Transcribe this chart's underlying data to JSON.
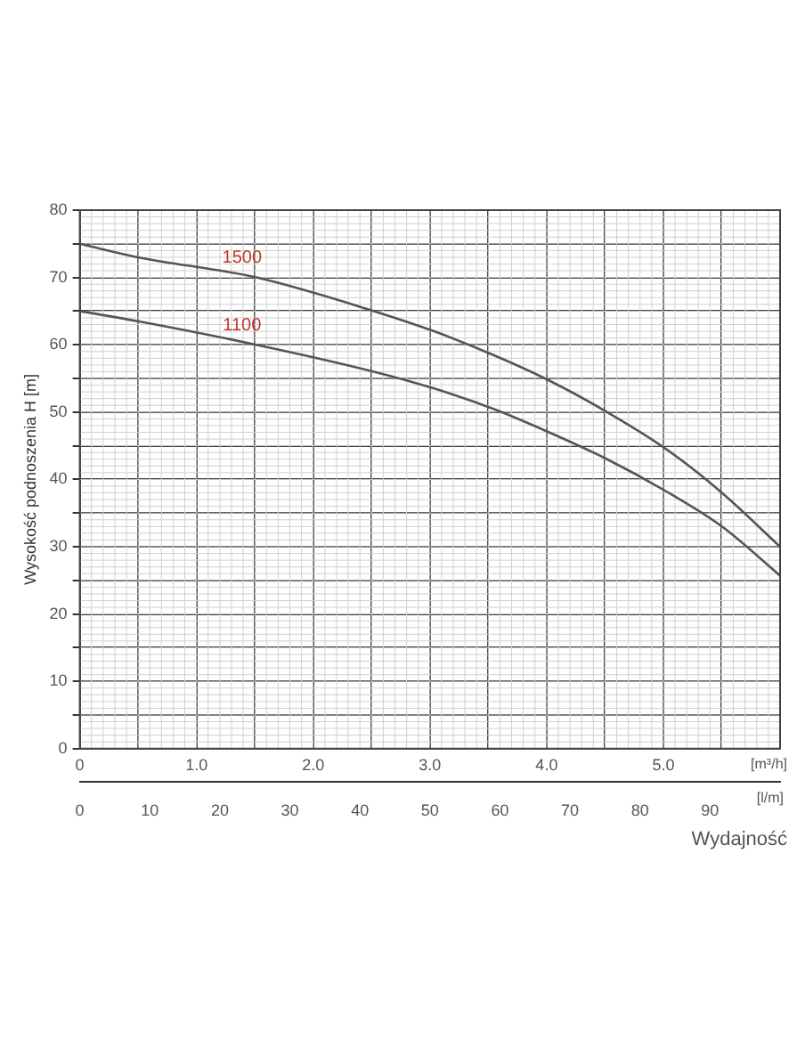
{
  "chart_data": {
    "type": "line",
    "ylabel": "Wysokość podnoszenia H [m]",
    "xlabel": "[l/m]",
    "x2label": "[m³/h]",
    "annotations": [
      "Wydajność"
    ],
    "x": [
      0,
      8.3,
      25.2,
      42,
      50.6,
      59,
      67,
      75.3,
      83.6,
      91.7,
      100
    ],
    "series": [
      {
        "name": "1500",
        "color": "#555555",
        "values": [
          75,
          73,
          70,
          65,
          62,
          58.5,
          54.7,
          50,
          44.6,
          38,
          30
        ]
      },
      {
        "name": "1100",
        "color": "#555555",
        "values": [
          65,
          63.5,
          60,
          56,
          53.5,
          50.5,
          47,
          43,
          38.3,
          33,
          25.7
        ]
      }
    ],
    "xlim": [
      0,
      100
    ],
    "xticks": [
      0,
      10,
      20,
      30,
      40,
      50,
      60,
      70,
      80,
      90
    ],
    "x2lim": [
      0,
      6
    ],
    "x2ticks": [
      0,
      {
        "value": 0.5,
        "label": null
      },
      {
        "value": 1,
        "label": "1.0"
      },
      {
        "value": 1.5,
        "label": null
      },
      {
        "value": 2,
        "label": "2.0"
      },
      {
        "value": 2.5,
        "label": null
      },
      {
        "value": 3,
        "label": "3.0"
      },
      {
        "value": 3.5,
        "label": null
      },
      {
        "value": 4,
        "label": "4.0"
      },
      {
        "value": 4.5,
        "label": null
      },
      {
        "value": 5,
        "label": "5.0"
      },
      {
        "value": 5.5,
        "label": null
      },
      {
        "value": 6,
        "label": null
      }
    ],
    "ylim": [
      0,
      80
    ],
    "yticks": [
      0,
      {
        "value": 5,
        "label": null
      },
      10,
      {
        "value": 15,
        "label": null
      },
      20,
      {
        "value": 25,
        "label": null
      },
      30,
      {
        "value": 35,
        "label": null
      },
      40,
      {
        "value": 45,
        "label": null
      },
      50,
      {
        "value": 55,
        "label": null
      },
      60,
      {
        "value": 65,
        "label": null
      },
      70,
      {
        "value": 75,
        "label": null
      },
      80
    ],
    "grid": true,
    "legend": false,
    "marker": "none",
    "line_style": "solid"
  }
}
